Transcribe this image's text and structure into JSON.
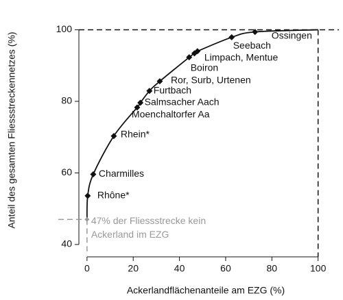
{
  "chart_data": {
    "type": "line",
    "x_label": "Ackerlandflächenanteile am EZG (%)",
    "y_label": "Anteil des gesamten Fliessstreckennetzes (%)",
    "x": [
      0,
      0.3,
      2.7,
      11.6,
      21.7,
      23.1,
      27,
      31.5,
      44.2,
      46.5,
      47.8,
      62.6,
      72.7,
      100
    ],
    "series": [
      {
        "color": "#111111",
        "values": [
          47,
          53.6,
          59.6,
          70.3,
          78.3,
          79.6,
          82.9,
          85.6,
          92.3,
          93.4,
          94,
          97.9,
          99.4,
          100
        ],
        "point_labels": [
          null,
          "Rhône*",
          "Charmilles",
          "Rhein*",
          "Moenchaltorfer Aa",
          "Salmsacher Aach",
          "Furtbach",
          "Ror, Surb, Urtenen",
          "Boiron",
          null,
          "Limpach, Mentue",
          "Seebach",
          "Ossingen",
          null
        ]
      }
    ],
    "annotation": [
      "47% der Fliessstrecke kein",
      "Ackerland im EZG"
    ],
    "annotation_color": "#999999",
    "xlim": [
      -5,
      109
    ],
    "xticks": [
      0,
      20,
      40,
      60,
      80,
      100
    ],
    "ylim": [
      37.5,
      102
    ],
    "yticks": [
      40,
      60,
      80,
      100
    ],
    "grid": false
  }
}
